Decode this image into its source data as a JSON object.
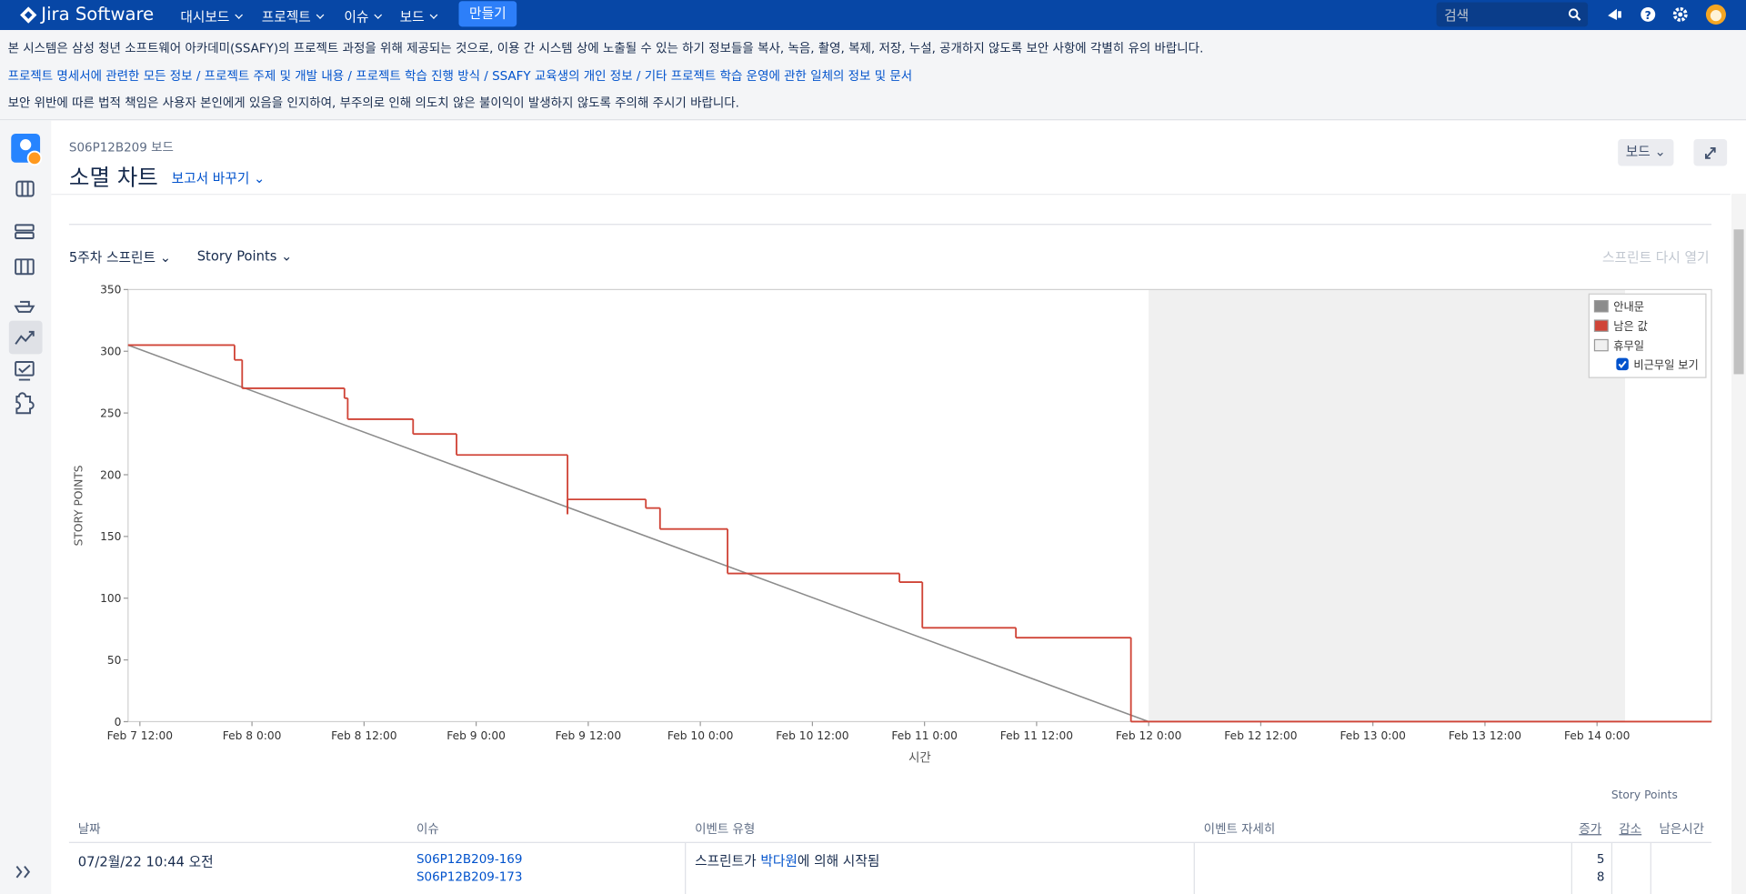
{
  "nav": {
    "brand": "Jira Software",
    "menu": [
      "대시보드",
      "프로젝트",
      "이슈",
      "보드"
    ],
    "create": "만들기",
    "search": "검색"
  },
  "notices": [
    "본 시스템은 삼성 청년 소프트웨어 아카데미(SSAFY)의 프로젝트 과정을 위해 제공되는 것으로, 이용 간 시스템 상에 노출될 수 있는 하기 정보들을 복사, 녹음, 촬영, 복제, 저장, 누설, 공개하지 않도록 보안 사항에 각별히 유의 바랍니다.",
    "프로젝트 명세서에 관련한 모든 정보 / 프로젝트 주제 및 개발 내용 / 프로젝트 학습 진행 방식 / SSAFY 교육생의 개인 정보 / 기타 프로젝트 학습 운영에 관한 일체의 정보 및 문서",
    "보안 위반에 따른 법적 책임은 사용자 본인에게 있음을 인지하여, 부주의로 인해 의도치 않은 불이익이 발생하지 않도록 주의해 주시기 바랍니다."
  ],
  "header": {
    "breadcrumb": "S06P12B209 보드",
    "title": "소멸 차트",
    "switch": "보고서 바꾸기",
    "board_button": "보드"
  },
  "controls": {
    "sprint": "5주차 스프린트",
    "estimate": "Story Points",
    "reopen": "스프린트 다시 열기"
  },
  "chart_data": {
    "type": "step-line",
    "ylabel": "STORY POINTS",
    "xlabel": "시간",
    "xlim": [
      "Feb 7 10:44",
      "Feb 14 12:15"
    ],
    "xticks": [
      "Feb 7 12:00",
      "Feb 8 0:00",
      "Feb 8 12:00",
      "Feb 9 0:00",
      "Feb 9 12:00",
      "Feb 10 0:00",
      "Feb 10 12:00",
      "Feb 11 0:00",
      "Feb 11 12:00",
      "Feb 12 0:00",
      "Feb 12 12:00",
      "Feb 13 0:00",
      "Feb 13 12:00",
      "Feb 14 0:00"
    ],
    "ylim": [
      0,
      350
    ],
    "yticks": [
      0,
      50,
      100,
      150,
      200,
      250,
      300,
      350
    ],
    "grid": false,
    "series": [
      {
        "name": "안내문",
        "color": "#8c8c8c",
        "x": [
          "Feb 7 10:44",
          "Feb 12 0:00"
        ],
        "values": [
          305,
          0
        ]
      },
      {
        "name": "남은 값",
        "color": "#d04437",
        "x": [
          "Feb 7 10:44",
          "Feb 7 22:08",
          "Feb 7 22:57",
          "Feb 8 9:54",
          "Feb 8 10:15",
          "Feb 8 17:15",
          "Feb 8 21:54",
          "Feb 9 9:47",
          "Feb 9 9:47",
          "Feb 9 18:10",
          "Feb 9 19:41",
          "Feb 10 2:55",
          "Feb 10 21:19",
          "Feb 10 23:46",
          "Feb 11 9:47",
          "Feb 11 22:06"
        ],
        "values": [
          305,
          293,
          270,
          262,
          245,
          233,
          216,
          168,
          180,
          173,
          156,
          120,
          113,
          76,
          68,
          0
        ]
      }
    ],
    "non_working": {
      "name": "휴무일",
      "color": "#f0f0f0",
      "x": [
        "Feb 12 0:00",
        "Feb 14 3:00"
      ]
    },
    "show_non_working": {
      "label": "비근무일 보기",
      "checked": true
    },
    "legend": "top-right"
  },
  "table": {
    "unit_label": "Story Points",
    "columns": [
      "날짜",
      "이슈",
      "이벤트 유형",
      "이벤트 자세히",
      "증가",
      "감소",
      "남은시간"
    ],
    "rows": [
      {
        "date": "07/2월/22 10:44 오전",
        "issues": [
          "S06P12B209-169",
          "S06P12B209-173"
        ],
        "event": {
          "prefix": "스프린트가 ",
          "user": "박다원",
          "suffix": "에 의해 시작됨"
        },
        "increase": [
          5,
          8
        ]
      }
    ]
  }
}
